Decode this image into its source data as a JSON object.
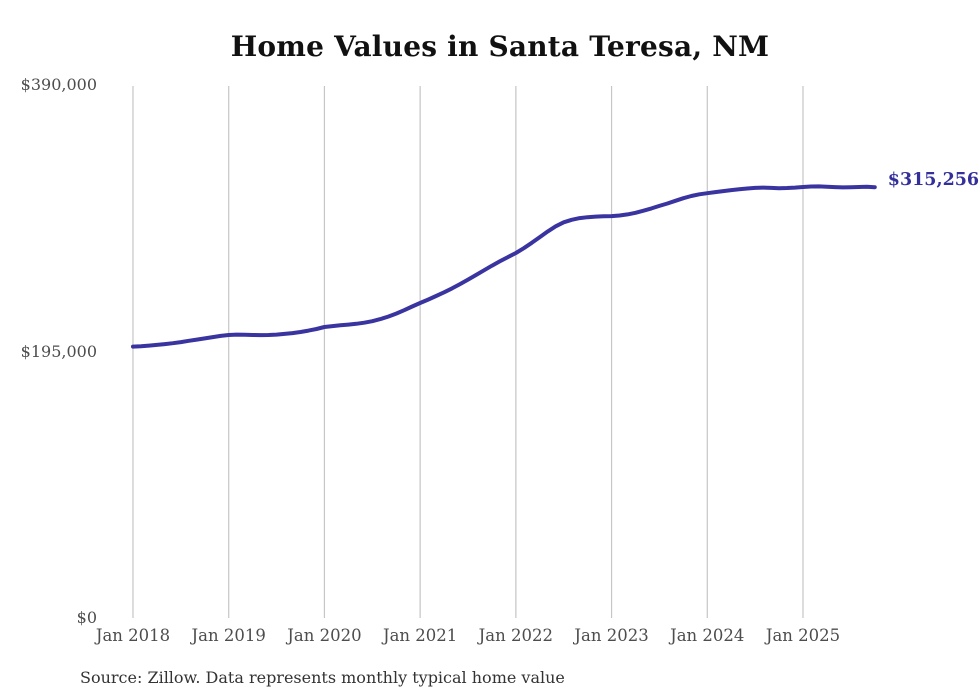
{
  "chart_data": {
    "type": "line",
    "title": "Home Values in Santa Teresa, NM",
    "ylabel": "",
    "xlabel": "",
    "ylim": [
      0,
      390000
    ],
    "grid": "vertical-only",
    "legend": "none",
    "end_label": "$315,256",
    "end_value": 315256,
    "x_ticks": [
      "Jan 2018",
      "Jan 2019",
      "Jan 2020",
      "Jan 2021",
      "Jan 2022",
      "Jan 2023",
      "Jan 2024",
      "Jan 2025"
    ],
    "x_tick_months": [
      0,
      12,
      24,
      36,
      48,
      60,
      72,
      84
    ],
    "y_ticks": [
      {
        "value": 0,
        "label": "$0"
      },
      {
        "value": 195000,
        "label": "$195,000"
      },
      {
        "value": 390000,
        "label": "$390,000"
      }
    ],
    "series": [
      {
        "name": "Monthly typical home value",
        "color": "#3a34a0",
        "x_start": "2018-01",
        "x_end": "2025-10",
        "x_interval": "month",
        "values": [
          198600,
          198900,
          199300,
          199800,
          200400,
          201100,
          201900,
          202800,
          203700,
          204600,
          205500,
          206400,
          207100,
          207400,
          207300,
          207100,
          207000,
          207100,
          207400,
          207900,
          208500,
          209300,
          210300,
          211500,
          212900,
          213600,
          214200,
          214700,
          215300,
          216100,
          217200,
          218700,
          220500,
          222700,
          225200,
          227900,
          230500,
          233000,
          235600,
          238300,
          241200,
          244300,
          247600,
          251000,
          254400,
          257800,
          261000,
          264100,
          267100,
          270600,
          274500,
          278700,
          282900,
          286600,
          289500,
          291400,
          292600,
          293300,
          293700,
          293900,
          294100,
          294500,
          295300,
          296500,
          298000,
          299700,
          301500,
          303300,
          305300,
          307200,
          308800,
          310000,
          310800,
          311600,
          312400,
          313100,
          313700,
          314300,
          314700,
          314900,
          314700,
          314500,
          314600,
          314900,
          315400,
          315700,
          315800,
          315600,
          315300,
          315100,
          315200,
          315400,
          315500,
          315256
        ]
      }
    ]
  },
  "source_note": "Source: Zillow. Data represents monthly typical home value",
  "colors": {
    "line": "#3a34a0",
    "grid": "#c6c6c6",
    "tick_text": "#4d4d4d",
    "title_text": "#111111",
    "end_label_text": "#34309b",
    "source_text": "#333333",
    "background": "#ffffff"
  }
}
